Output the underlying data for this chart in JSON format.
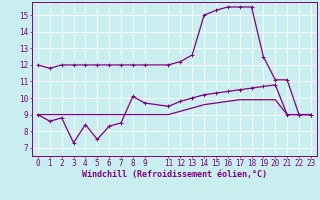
{
  "xlabel": "Windchill (Refroidissement éolien,°C)",
  "background_color": "#c8eef0",
  "grid_color": "#ffffff",
  "line_color": "#800080",
  "x_ticks": [
    0,
    1,
    2,
    3,
    4,
    5,
    6,
    7,
    8,
    9,
    11,
    12,
    13,
    14,
    15,
    16,
    17,
    18,
    19,
    20,
    21,
    22,
    23
  ],
  "y_ticks": [
    7,
    8,
    9,
    10,
    11,
    12,
    13,
    14,
    15
  ],
  "ylim": [
    6.5,
    15.8
  ],
  "xlim": [
    -0.5,
    23.5
  ],
  "series1_x": [
    0,
    1,
    2,
    3,
    4,
    5,
    6,
    7,
    8,
    9,
    11,
    12,
    13,
    14,
    15,
    16,
    17,
    18,
    19,
    20,
    21,
    22,
    23
  ],
  "series1_y": [
    12.0,
    11.8,
    12.0,
    12.0,
    12.0,
    12.0,
    12.0,
    12.0,
    12.0,
    12.0,
    12.0,
    12.2,
    12.6,
    15.0,
    15.3,
    15.5,
    15.5,
    15.5,
    12.5,
    11.1,
    11.1,
    9.0,
    9.0
  ],
  "series2_x": [
    0,
    1,
    2,
    3,
    4,
    5,
    6,
    7,
    8,
    9,
    11,
    12,
    13,
    14,
    15,
    16,
    17,
    18,
    19,
    20,
    21,
    22,
    23
  ],
  "series2_y": [
    9.0,
    8.6,
    8.8,
    7.3,
    8.4,
    7.5,
    8.3,
    8.5,
    10.1,
    9.7,
    9.5,
    9.8,
    10.0,
    10.2,
    10.3,
    10.4,
    10.5,
    10.6,
    10.7,
    10.8,
    9.0,
    9.0,
    9.0
  ],
  "series3_x": [
    0,
    1,
    2,
    3,
    4,
    5,
    6,
    7,
    8,
    9,
    11,
    12,
    13,
    14,
    15,
    16,
    17,
    18,
    19,
    20,
    21,
    22,
    23
  ],
  "series3_y": [
    9.0,
    9.0,
    9.0,
    9.0,
    9.0,
    9.0,
    9.0,
    9.0,
    9.0,
    9.0,
    9.0,
    9.2,
    9.4,
    9.6,
    9.7,
    9.8,
    9.9,
    9.9,
    9.9,
    9.9,
    9.0,
    9.0,
    9.0
  ],
  "tick_fontsize": 5.5,
  "xlabel_fontsize": 6.0,
  "marker_size": 2.5,
  "line_width": 0.9
}
